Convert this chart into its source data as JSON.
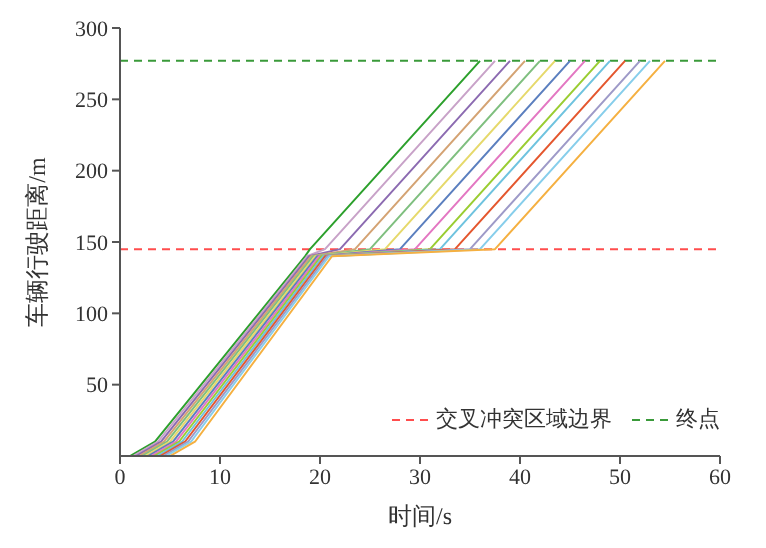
{
  "chart_data": {
    "type": "line",
    "xlabel": "时间/s",
    "ylabel": "车辆行驶距离/m",
    "xlim": [
      0,
      60
    ],
    "xticks": [
      0,
      10,
      20,
      30,
      40,
      50,
      60
    ],
    "ylim": [
      0,
      300
    ],
    "yticks": [
      50,
      100,
      150,
      200,
      250,
      300
    ],
    "grid": false,
    "marker": "none",
    "line_style": "solid",
    "legend": "bottom right",
    "ref_lines": [
      {
        "axis": "y",
        "value": 145,
        "label": "交叉冲突区域边界",
        "color": "#ff4d4d",
        "line_style": "dashed"
      },
      {
        "axis": "y",
        "value": 277,
        "label": "终点",
        "color": "#3a9a3a",
        "line_style": "dashed"
      }
    ],
    "series": [
      {
        "color": "#2ca02c",
        "x": [
          1.0,
          3.5,
          18.5,
          19,
          36
        ],
        "values": [
          0,
          10,
          140,
          145,
          277
        ]
      },
      {
        "color": "#c8a2c8",
        "x": [
          1.3,
          3.8,
          18.7,
          20.5,
          37.5
        ],
        "values": [
          0,
          10,
          140,
          145,
          277
        ]
      },
      {
        "color": "#8c6bb1",
        "x": [
          1.6,
          4.1,
          18.9,
          22,
          39
        ],
        "values": [
          0,
          10,
          140,
          145,
          277
        ]
      },
      {
        "color": "#d4a373",
        "x": [
          1.9,
          4.4,
          19.1,
          23.5,
          40.5
        ],
        "values": [
          0,
          10,
          140,
          145,
          277
        ]
      },
      {
        "color": "#7fbf7f",
        "x": [
          2.2,
          4.7,
          19.3,
          25,
          42
        ],
        "values": [
          0,
          10,
          140,
          145,
          277
        ]
      },
      {
        "color": "#e6d96b",
        "x": [
          2.5,
          5.0,
          19.5,
          26.5,
          43.5
        ],
        "values": [
          0,
          10,
          140,
          145,
          277
        ]
      },
      {
        "color": "#5b7fbf",
        "x": [
          2.8,
          5.3,
          19.7,
          28,
          45
        ],
        "values": [
          0,
          10,
          140,
          145,
          277
        ]
      },
      {
        "color": "#e377c2",
        "x": [
          3.1,
          5.6,
          19.9,
          29.5,
          46.5
        ],
        "values": [
          0,
          10,
          140,
          145,
          277
        ]
      },
      {
        "color": "#9acd32",
        "x": [
          3.4,
          5.9,
          20.1,
          31,
          48
        ],
        "values": [
          0,
          10,
          140,
          145,
          277
        ]
      },
      {
        "color": "#6fc3df",
        "x": [
          3.7,
          6.2,
          20.3,
          32,
          49
        ],
        "values": [
          0,
          10,
          140,
          145,
          277
        ]
      },
      {
        "color": "#e4572e",
        "x": [
          4.0,
          6.5,
          20.5,
          33.5,
          50.5
        ],
        "values": [
          0,
          10,
          140,
          145,
          277
        ]
      },
      {
        "color": "#9e9ac8",
        "x": [
          4.3,
          6.8,
          20.7,
          35,
          52
        ],
        "values": [
          0,
          10,
          140,
          145,
          277
        ]
      },
      {
        "color": "#87ceeb",
        "x": [
          4.6,
          7.1,
          20.9,
          36,
          53
        ],
        "values": [
          0,
          10,
          140,
          145,
          277
        ]
      },
      {
        "color": "#f5b041",
        "x": [
          5.0,
          7.5,
          21.2,
          37.5,
          54.5
        ],
        "values": [
          0,
          10,
          140,
          145,
          277
        ]
      }
    ]
  }
}
